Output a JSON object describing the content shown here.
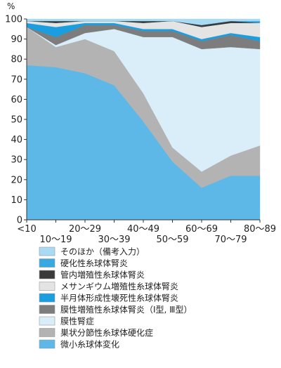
{
  "chart_data": {
    "type": "area",
    "stacked": true,
    "y_unit_label": "%",
    "ylim": [
      0,
      100
    ],
    "y_ticks": [
      0,
      10,
      20,
      30,
      40,
      50,
      60,
      70,
      80,
      90,
      100
    ],
    "x_tick_labels": [
      "<10",
      "10〜19",
      "20〜29",
      "30〜39",
      "40〜49",
      "50〜59",
      "60〜69",
      "70〜79",
      "80〜89"
    ],
    "categories": [
      "<10",
      "10〜19",
      "20〜29",
      "30〜39",
      "40〜49",
      "50〜59",
      "60〜69",
      "70〜79",
      "80〜89"
    ],
    "grid": false,
    "legend_position": "bottom",
    "series": [
      {
        "name": "微小糸球体変化",
        "color": "#5db8e8",
        "values": [
          77,
          76,
          73,
          67,
          49,
          29,
          16,
          22,
          22
        ]
      },
      {
        "name": "巣状分節性糸球体硬化症",
        "color": "#b3b3b3",
        "values": [
          19,
          10,
          17,
          17,
          14,
          7,
          8,
          10,
          15
        ]
      },
      {
        "name": "膜性腎症",
        "color": "#d9eef9",
        "values": [
          0,
          1,
          3,
          11,
          28,
          55,
          61,
          54,
          48
        ]
      },
      {
        "name": "膜性増殖性糸球体腎炎（Ⅰ型, Ⅲ型）",
        "color": "#7d7d7d",
        "values": [
          0,
          4,
          4,
          2,
          3,
          3,
          4,
          6,
          4
        ]
      },
      {
        "name": "半月体形成性壊死性糸球体腎炎",
        "color": "#1a9ee0",
        "values": [
          2,
          5,
          1,
          1,
          1,
          1,
          1,
          1,
          2
        ]
      },
      {
        "name": "メサンギウム増殖性糸球体腎炎",
        "color": "#e4e4e4",
        "values": [
          1,
          2,
          1,
          1,
          3,
          4,
          6,
          5,
          7
        ]
      },
      {
        "name": "管内増殖性糸球体腎炎",
        "color": "#3a3a3a",
        "values": [
          0,
          1,
          0,
          0,
          1,
          0,
          1,
          1,
          0
        ]
      },
      {
        "name": "硬化性糸球体腎炎",
        "color": "#36a9e1",
        "values": [
          0,
          0,
          0,
          0,
          0,
          0,
          0,
          0,
          1
        ]
      },
      {
        "name": "そのほか（備考入力）",
        "color": "#a8daf3",
        "values": [
          1,
          1,
          1,
          1,
          1,
          1,
          3,
          1,
          1
        ]
      }
    ]
  },
  "legend_entries": [
    {
      "label": "そのほか（備考入力）",
      "color": "#a8daf3"
    },
    {
      "label": "硬化性糸球体腎炎",
      "color": "#36a9e1"
    },
    {
      "label": "管内増殖性糸球体腎炎",
      "color": "#3a3a3a"
    },
    {
      "label": "メサンギウム増殖性糸球体腎炎",
      "color": "#e4e4e4"
    },
    {
      "label": "半月体形成性壊死性糸球体腎炎",
      "color": "#1a9ee0"
    },
    {
      "label": "膜性増殖性糸球体腎炎（Ⅰ型, Ⅲ型）",
      "color": "#7d7d7d"
    },
    {
      "label": "膜性腎症",
      "color": "#d9eef9"
    },
    {
      "label": "巣状分節性糸球体硬化症",
      "color": "#b3b3b3"
    },
    {
      "label": "微小糸球体変化",
      "color": "#5db8e8"
    }
  ]
}
